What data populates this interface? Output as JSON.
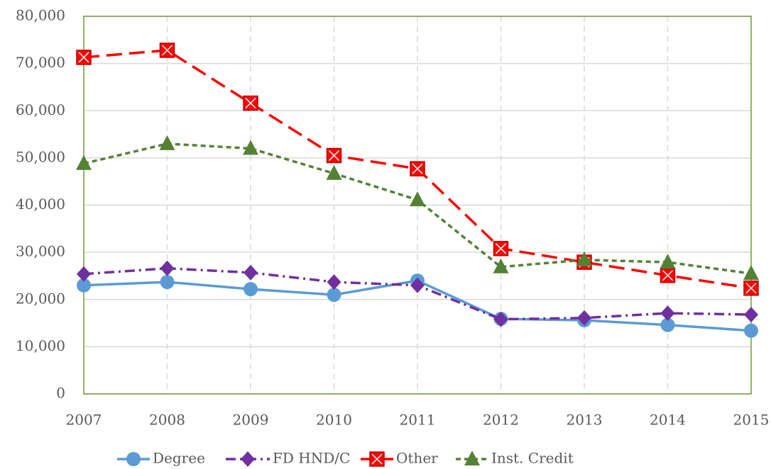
{
  "chart_data": {
    "type": "line",
    "categories": [
      "2007",
      "2008",
      "2009",
      "2010",
      "2011",
      "2012",
      "2013",
      "2014",
      "2015"
    ],
    "series": [
      {
        "name": "Degree",
        "color": "#5b9bd5",
        "marker": "circle",
        "dash": "solid",
        "values": [
          23000,
          23700,
          22200,
          21000,
          24000,
          15900,
          15600,
          14600,
          13400
        ]
      },
      {
        "name": "FD HND/C",
        "color": "#7030a0",
        "marker": "diamond",
        "dash": "dash-dot",
        "values": [
          25400,
          26600,
          25700,
          23700,
          23000,
          15800,
          16100,
          17100,
          16800
        ]
      },
      {
        "name": "Other",
        "color": "#ff0000",
        "marker": "square-x",
        "dash": "long-dash",
        "values": [
          71300,
          72800,
          61600,
          50500,
          47700,
          30800,
          27900,
          25100,
          22400
        ]
      },
      {
        "name": "Inst. Credit",
        "color": "#548235",
        "marker": "triangle",
        "dash": "short-dash",
        "values": [
          48800,
          53000,
          52000,
          46700,
          41100,
          26900,
          28400,
          27900,
          25500
        ]
      }
    ],
    "ylim": [
      0,
      80000
    ],
    "yticks": [
      0,
      {
        "value": 10000,
        "label": "10,000"
      },
      {
        "value": 20000,
        "label": "20,000"
      },
      {
        "value": 30000,
        "label": "30,000"
      },
      {
        "value": 40000,
        "label": "40,000"
      },
      {
        "value": 50000,
        "label": "50,000"
      },
      {
        "value": 60000,
        "label": "60,000"
      },
      {
        "value": 70000,
        "label": "70,000"
      },
      {
        "value": 80000,
        "label": "80,000"
      }
    ],
    "grid": true,
    "legend": "bottom",
    "frame_color": "#6f9a3c"
  }
}
